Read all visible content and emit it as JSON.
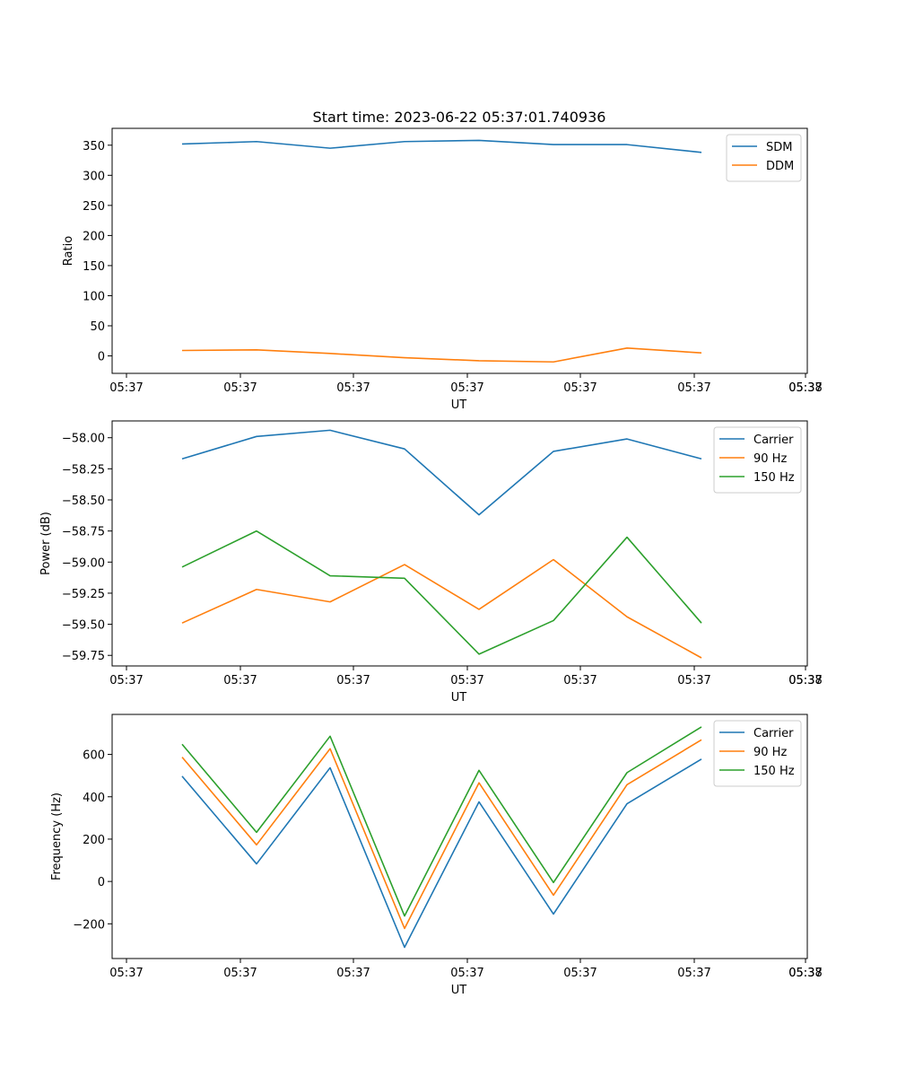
{
  "figure": {
    "title": "Start time: 2023-06-22 05:37:01.740936"
  },
  "chart_data": [
    {
      "type": "line",
      "title": "Start time: 2023-06-22 05:37:01.740936",
      "xlabel": "UT",
      "ylabel": "Ratio",
      "x_tick_labels": [
        "05:37",
        "05:37",
        "05:37",
        "05:37",
        "05:37",
        "05:37",
        "05:37",
        "05:38"
      ],
      "y_ticks": [
        0,
        50,
        100,
        150,
        200,
        250,
        300,
        350
      ],
      "ylim": [
        -29,
        378
      ],
      "legend_position": "top-right",
      "series": [
        {
          "name": "SDM",
          "color": "#1f77b4",
          "values": [
            352,
            356,
            345,
            356,
            358,
            351,
            351,
            338
          ]
        },
        {
          "name": "DDM",
          "color": "#ff7f0e",
          "values": [
            9,
            10,
            4,
            -3,
            -8,
            -10,
            13,
            5
          ]
        }
      ]
    },
    {
      "type": "line",
      "title": "",
      "xlabel": "UT",
      "ylabel": "Power (dB)",
      "x_tick_labels": [
        "05:37",
        "05:37",
        "05:37",
        "05:37",
        "05:37",
        "05:37",
        "05:37",
        "05:38"
      ],
      "y_ticks": [
        -59.75,
        -59.5,
        -59.25,
        -59.0,
        -58.75,
        -58.5,
        -58.25,
        -58.0
      ],
      "y_tick_labels": [
        "−59.75",
        "−59.50",
        "−59.25",
        "−59.00",
        "−58.75",
        "−58.50",
        "−58.25",
        "−58.00"
      ],
      "ylim": [
        -59.835,
        -57.865
      ],
      "legend_position": "top-right",
      "series": [
        {
          "name": "Carrier",
          "color": "#1f77b4",
          "values": [
            -58.17,
            -57.99,
            -57.94,
            -58.09,
            -58.62,
            -58.11,
            -58.01,
            -58.17
          ]
        },
        {
          "name": "90 Hz",
          "color": "#ff7f0e",
          "values": [
            -59.49,
            -59.22,
            -59.32,
            -59.02,
            -59.38,
            -58.98,
            -59.44,
            -59.77
          ]
        },
        {
          "name": "150 Hz",
          "color": "#2ca02c",
          "values": [
            -59.04,
            -58.75,
            -59.11,
            -59.13,
            -59.74,
            -59.47,
            -58.8,
            -59.49
          ]
        }
      ]
    },
    {
      "type": "line",
      "title": "",
      "xlabel": "UT",
      "ylabel": "Frequency (Hz)",
      "x_tick_labels": [
        "05:37",
        "05:37",
        "05:37",
        "05:37",
        "05:37",
        "05:37",
        "05:37",
        "05:38"
      ],
      "y_ticks": [
        -200,
        0,
        200,
        400,
        600
      ],
      "y_tick_labels": [
        "−200",
        "0",
        "200",
        "400",
        "600"
      ],
      "ylim": [
        -364,
        789
      ],
      "legend_position": "top-right",
      "series": [
        {
          "name": "Carrier",
          "color": "#1f77b4",
          "values": [
            497,
            83,
            537,
            -311,
            376,
            -154,
            367,
            578
          ]
        },
        {
          "name": "90 Hz",
          "color": "#ff7f0e",
          "values": [
            587,
            173,
            627,
            -222,
            466,
            -65,
            457,
            669
          ]
        },
        {
          "name": "150 Hz",
          "color": "#2ca02c",
          "values": [
            648,
            232,
            686,
            -163,
            525,
            -5,
            514,
            730
          ]
        }
      ]
    }
  ]
}
